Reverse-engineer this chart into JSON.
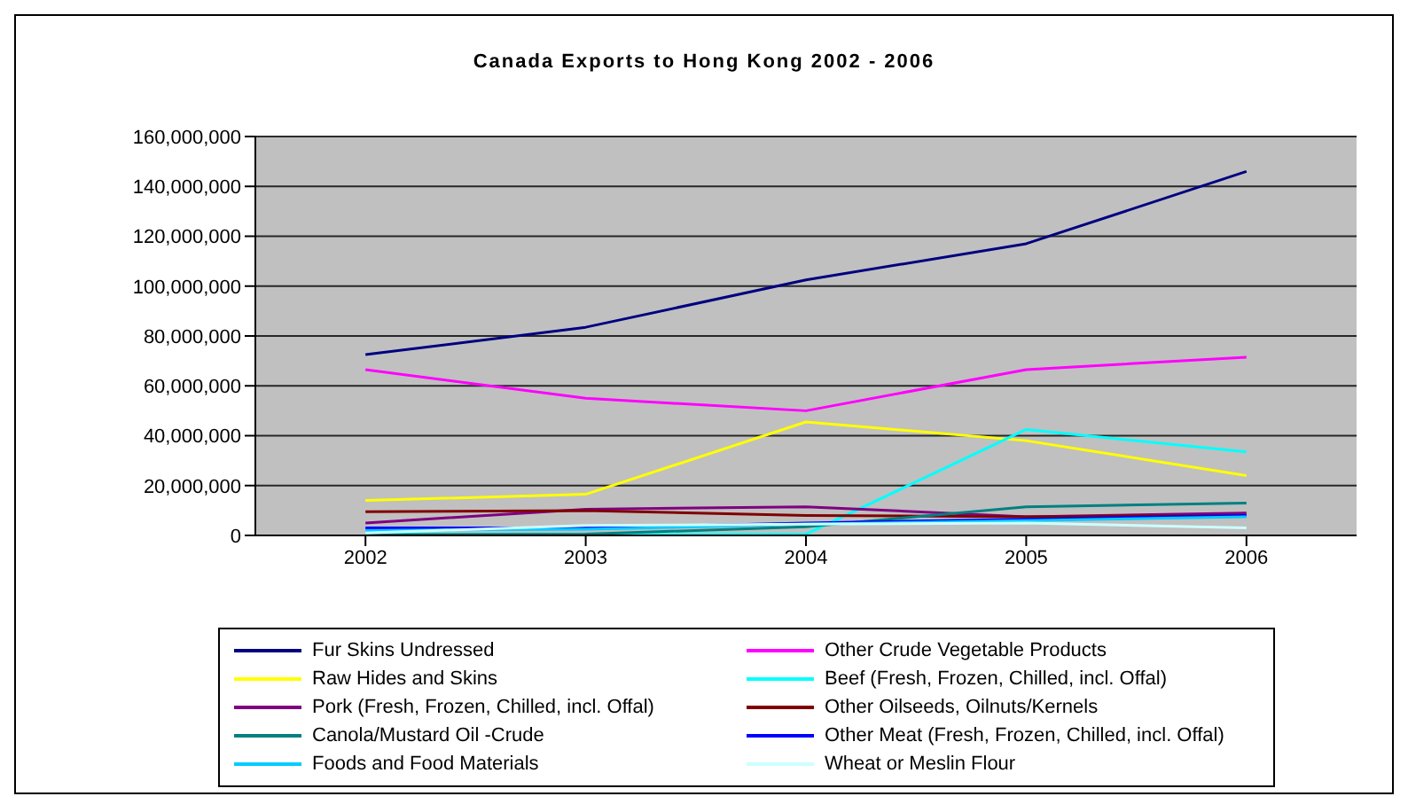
{
  "chart_data": {
    "type": "line",
    "title": "Canada Exports to Hong Kong 2002 - 2006",
    "categories": [
      "2002",
      "2003",
      "2004",
      "2005",
      "2006"
    ],
    "ylim": [
      0,
      160000000
    ],
    "yticks": [
      0,
      {
        "value": 20000000,
        "label": "20,000,000"
      },
      {
        "value": 40000000,
        "label": "40,000,000"
      },
      {
        "value": 60000000,
        "label": "60,000,000"
      },
      {
        "value": 80000000,
        "label": "80,000,000"
      },
      {
        "value": 100000000,
        "label": "100,000,000"
      },
      {
        "value": 120000000,
        "label": "120,000,000"
      },
      {
        "value": 140000000,
        "label": "140,000,000"
      },
      {
        "value": 160000000,
        "label": "160,000,000"
      }
    ],
    "grid": "y",
    "legend": "bottom",
    "marker": "none",
    "line_style": "solid",
    "series": [
      {
        "name": "Fur Skins Undressed",
        "color": "#000080",
        "values": [
          72500000,
          83500000,
          102500000,
          117000000,
          146000000
        ]
      },
      {
        "name": "Other Crude Vegetable Products",
        "color": "#ff00ff",
        "values": [
          66500000,
          55000000,
          50000000,
          66500000,
          71500000
        ]
      },
      {
        "name": "Raw Hides and Skins",
        "color": "#ffff00",
        "values": [
          14000000,
          16500000,
          45500000,
          38000000,
          24000000
        ]
      },
      {
        "name": "Beef (Fresh, Frozen, Chilled, incl. Offal)",
        "color": "#00ffff",
        "values": [
          500000,
          300000,
          500000,
          42500000,
          33500000
        ]
      },
      {
        "name": "Pork (Fresh, Frozen, Chilled, incl. Offal)",
        "color": "#800080",
        "values": [
          5000000,
          10500000,
          11500000,
          7500000,
          9000000
        ]
      },
      {
        "name": "Other Oilseeds, Oilnuts/Kernels",
        "color": "#800000",
        "values": [
          9500000,
          10000000,
          8000000,
          7500000,
          8000000
        ]
      },
      {
        "name": "Canola/Mustard Oil -Crude",
        "color": "#008080",
        "values": [
          300000,
          500000,
          3500000,
          11500000,
          13000000
        ]
      },
      {
        "name": "Other Meat (Fresh, Frozen, Chilled, incl. Offal)",
        "color": "#0000ff",
        "values": [
          3000000,
          3000000,
          5000000,
          6500000,
          8000000
        ]
      },
      {
        "name": "Foods and Food Materials",
        "color": "#00ccff",
        "values": [
          2000000,
          2500000,
          4500000,
          6000000,
          7500000
        ]
      },
      {
        "name": "Wheat or Meslin Flour",
        "color": "#ccffff",
        "values": [
          1000000,
          4000000,
          4500000,
          5000000,
          3000000
        ]
      }
    ]
  }
}
